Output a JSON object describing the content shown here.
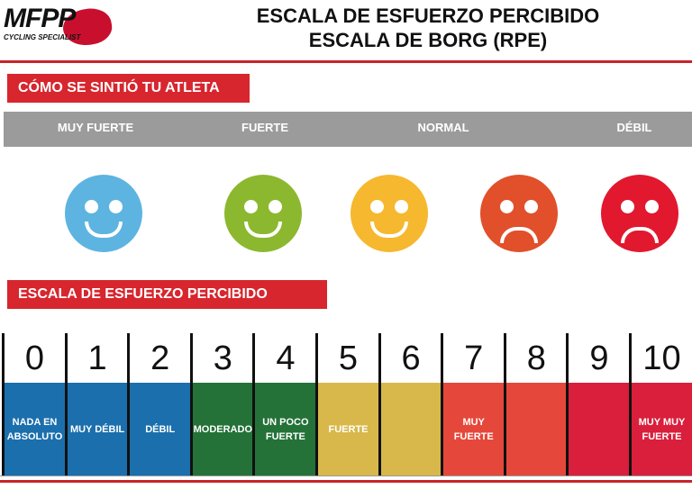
{
  "logo": {
    "text": "MFPP",
    "subtitle": "CYCLING SPECIALIST"
  },
  "title": {
    "line1": "ESCALA DE ESFUERZO PERCIBIDO",
    "line2": "ESCALA DE BORG (RPE)"
  },
  "section1": {
    "label": "CÓMO SE SINTIÓ TU ATLETA"
  },
  "feelings": [
    {
      "label": "MUY FUERTE",
      "color": "#5db4e0",
      "mood": "happy"
    },
    {
      "label": "FUERTE",
      "color": "#8cb82f",
      "mood": "happy"
    },
    {
      "label": "NORMAL",
      "color": "#f5b82e",
      "mood": "happy"
    },
    {
      "label": "DÉBIL",
      "color": "#e1502a",
      "mood": "sad"
    },
    {
      "label": "",
      "color": "#e2182f",
      "mood": "sad"
    }
  ],
  "section2": {
    "label": "ESCALA DE ESFUERZO PERCIBIDO"
  },
  "scale": [
    {
      "value": "0",
      "desc": "NADA EN ABSOLUTO",
      "color": "#1b6fac"
    },
    {
      "value": "1",
      "desc": "MUY DÉBIL",
      "color": "#1b6fac"
    },
    {
      "value": "2",
      "desc": "DÉBIL",
      "color": "#1b6fac"
    },
    {
      "value": "3",
      "desc": "MODERADO",
      "color": "#247238"
    },
    {
      "value": "4",
      "desc": "UN POCO FUERTE",
      "color": "#247238"
    },
    {
      "value": "5",
      "desc": "FUERTE",
      "color": "#d8b84a"
    },
    {
      "value": "6",
      "desc": "",
      "color": "#d8b84a"
    },
    {
      "value": "7",
      "desc": "MUY FUERTE",
      "color": "#e5483a"
    },
    {
      "value": "8",
      "desc": "",
      "color": "#e5483a"
    },
    {
      "value": "9",
      "desc": "",
      "color": "#d91f3c"
    },
    {
      "value": "10",
      "desc": "MUY MUY FUERTE",
      "color": "#d91f3c"
    }
  ]
}
